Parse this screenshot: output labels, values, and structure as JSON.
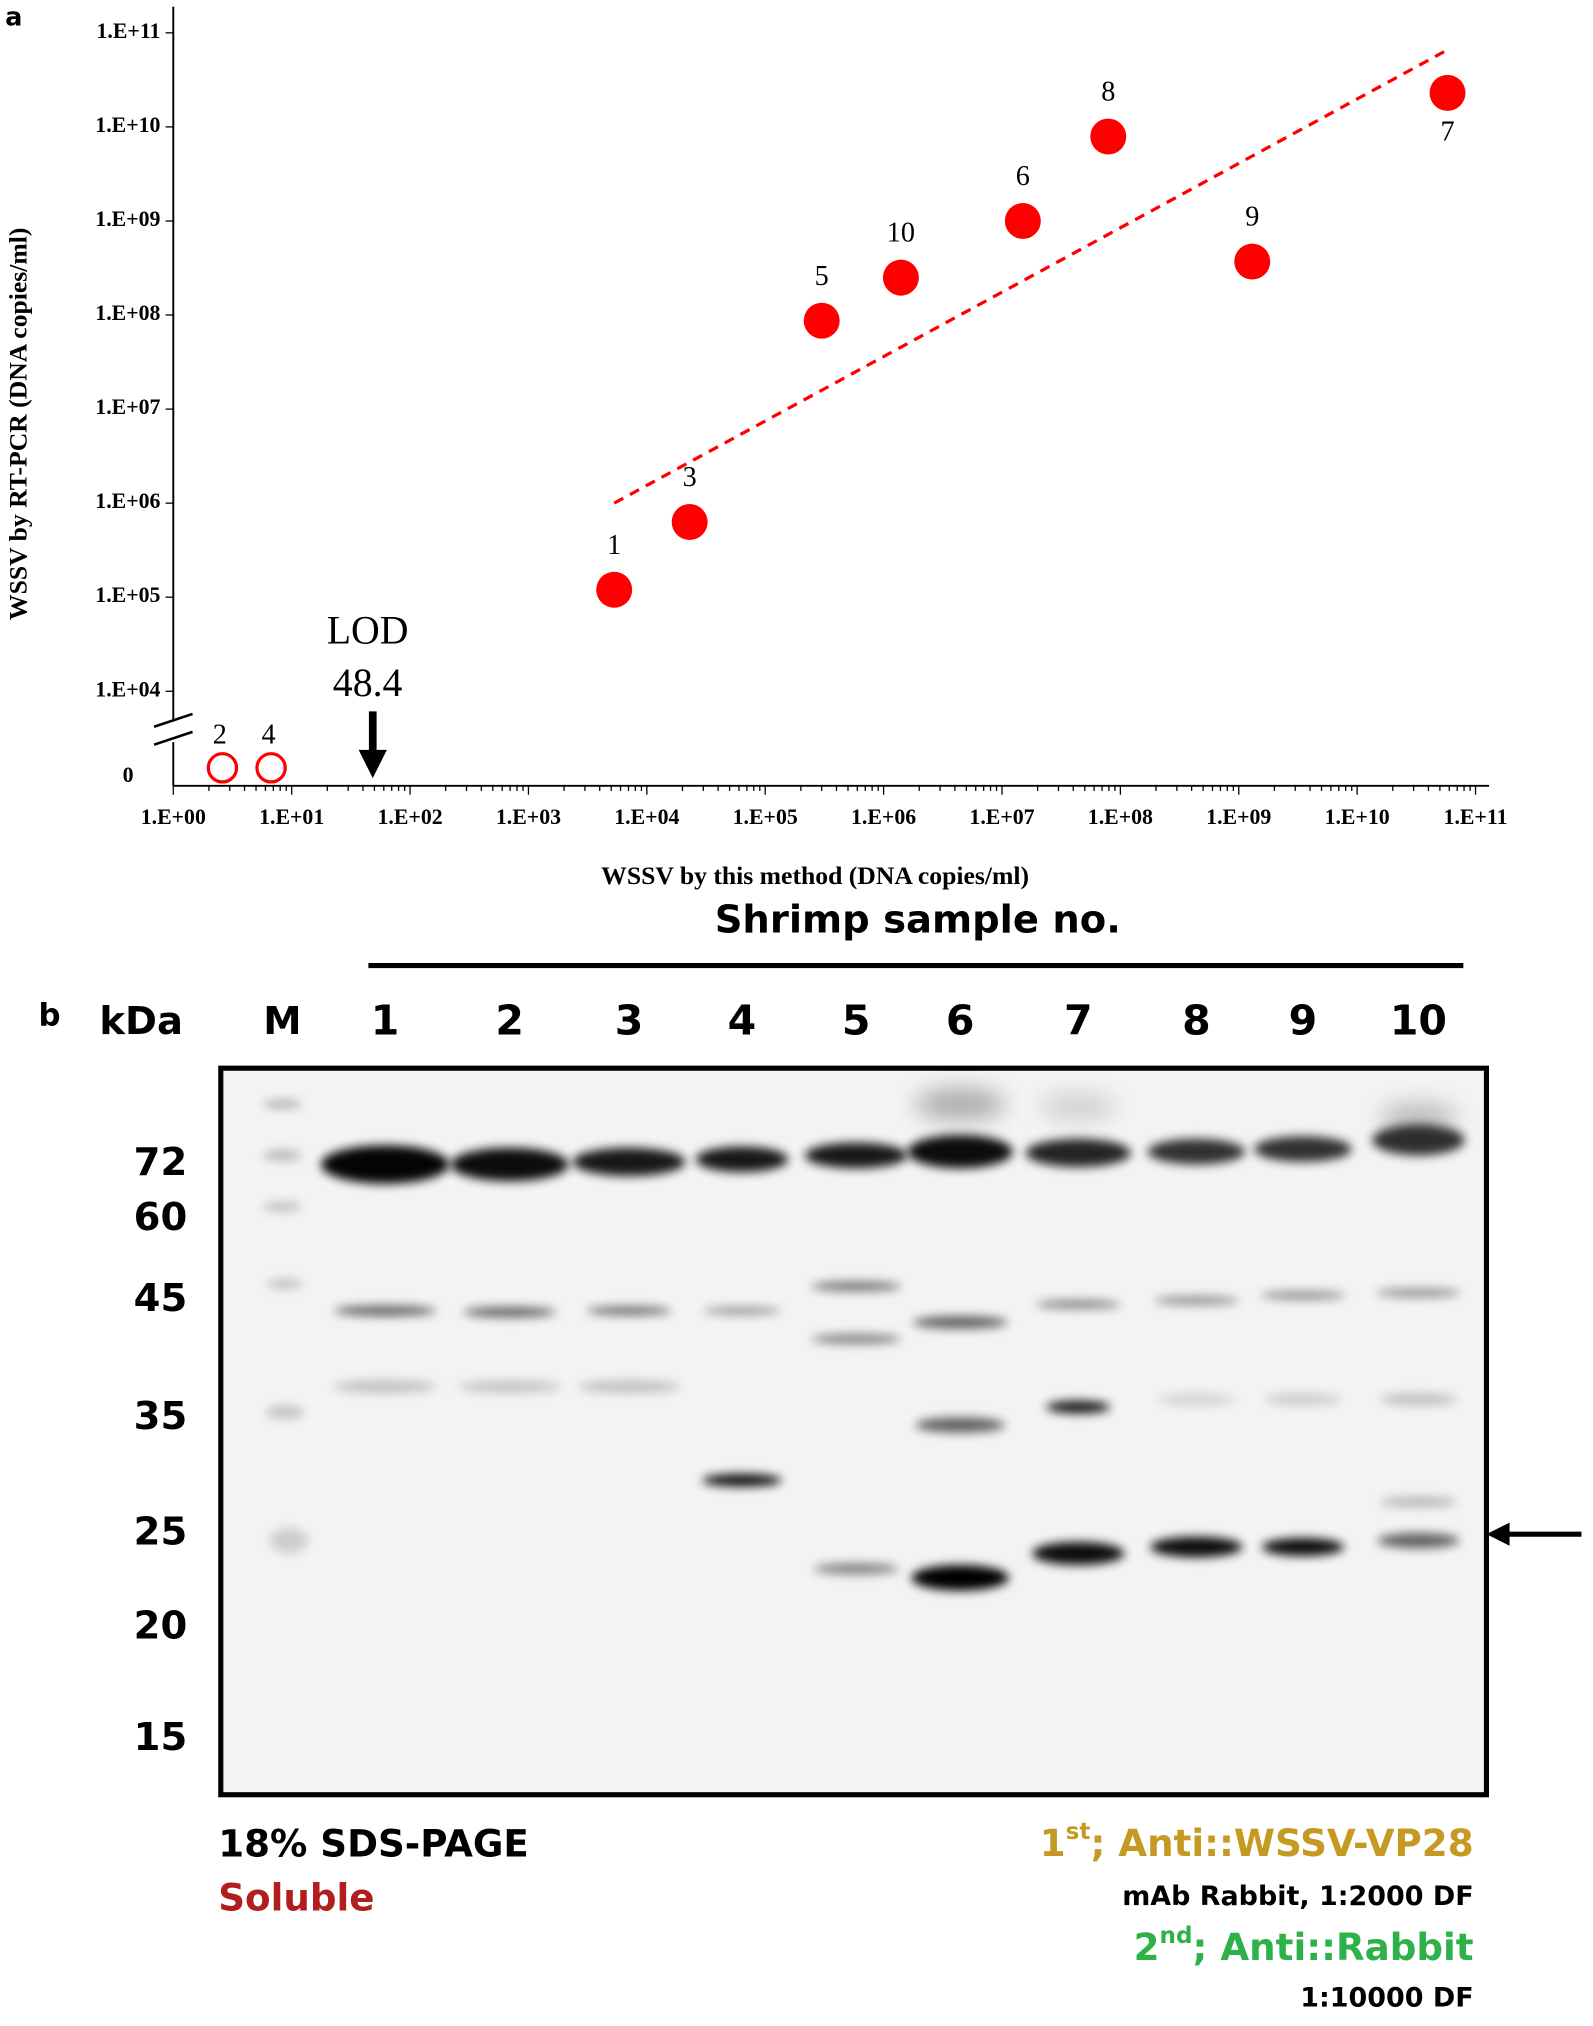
{
  "chart_data": {
    "type": "scatter",
    "panel": "a",
    "x_label": "WSSV by this method (DNA copies/ml)",
    "y_label": "WSSV by RT-PCR (DNA copies/ml)",
    "log_x": true,
    "log_y": true,
    "color": "#ff0000",
    "xlim": [
      1,
      130000000000
    ],
    "ylim": [
      3700,
      190000000000
    ],
    "xticks": [
      {
        "value": 1,
        "label": "1.E+00"
      },
      {
        "value": 10,
        "label": "1.E+01"
      },
      {
        "value": 100,
        "label": "1.E+02"
      },
      {
        "value": 1000,
        "label": "1.E+03"
      },
      {
        "value": 10000,
        "label": "1.E+04"
      },
      {
        "value": 100000,
        "label": "1.E+05"
      },
      {
        "value": 1000000,
        "label": "1.E+06"
      },
      {
        "value": 10000000,
        "label": "1.E+07"
      },
      {
        "value": 100000000,
        "label": "1.E+08"
      },
      {
        "value": 1000000000,
        "label": "1.E+09"
      },
      {
        "value": 10000000000,
        "label": "1.E+10"
      },
      {
        "value": 100000000000,
        "label": "1.E+11"
      }
    ],
    "yticks": [
      0,
      {
        "value": 10000,
        "label": "1.E+04"
      },
      {
        "value": 100000,
        "label": "1.E+05"
      },
      {
        "value": 1000000,
        "label": "1.E+06"
      },
      {
        "value": 10000000,
        "label": "1.E+07"
      },
      {
        "value": 100000000,
        "label": "1.E+08"
      },
      {
        "value": 1000000000,
        "label": "1.E+09"
      },
      {
        "value": 10000000000,
        "label": "1.E+10"
      },
      {
        "value": 100000000000,
        "label": "1.E+11"
      }
    ],
    "points": {
      "labels": [
        "1",
        "2",
        "3",
        "4",
        "5",
        "6",
        "7",
        "8",
        "9",
        "10"
      ],
      "x": [
        5300,
        2.6,
        23000,
        6.7,
        300000,
        15000000,
        58000000000,
        79000000,
        1300000000,
        1400000
      ],
      "y": [
        120000,
        0,
        630000,
        0,
        87000000,
        1000000000,
        23000000000,
        7900000000,
        370000000,
        250000000
      ]
    },
    "trendline": {
      "x": [
        5300,
        58000000000
      ],
      "y": [
        1000000,
        66000000000
      ]
    },
    "lod": {
      "label": "LOD",
      "value": 48.4
    }
  },
  "blot": {
    "panel": "b",
    "title": "Shrimp sample no.",
    "unit": "kDa",
    "marker_lane": "M",
    "lanes": [
      "1",
      "2",
      "3",
      "4",
      "5",
      "6",
      "7",
      "8",
      "9",
      "10"
    ],
    "marker_sizes": [
      "72",
      "60",
      "45",
      "35",
      "25",
      "20",
      "15"
    ],
    "gel": "18% SDS-PAGE",
    "fraction": "Soluble",
    "primary": {
      "number": "1",
      "sup": "st",
      "text": "; Anti::WSSV-VP28",
      "detail": "mAb Rabbit, 1:2000 DF"
    },
    "secondary": {
      "number": "2",
      "sup": "nd",
      "text": "; Anti::Rabbit",
      "detail": "1:10000 DF"
    }
  }
}
